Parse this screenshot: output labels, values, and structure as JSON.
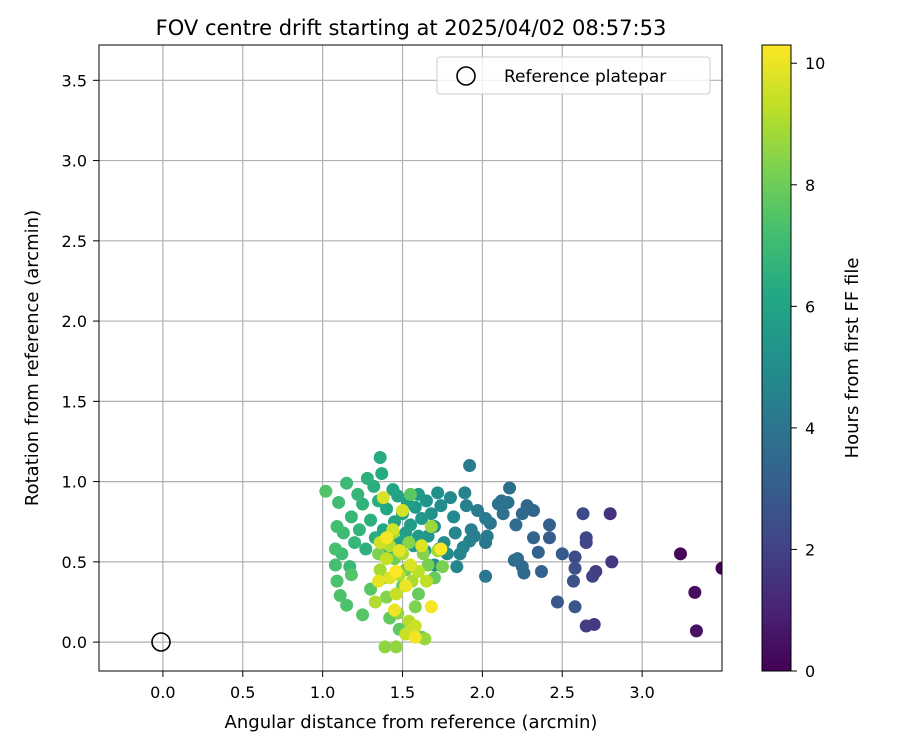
{
  "chart_data": {
    "type": "scatter",
    "title": "FOV centre drift starting at 2025/04/02 08:57:53",
    "xlabel": "Angular distance from reference (arcmin)",
    "ylabel": "Rotation from reference (arcmin)",
    "xlim": [
      -0.4,
      3.5
    ],
    "ylim": [
      -0.18,
      3.72
    ],
    "xticks": [
      "0.0",
      "0.5",
      "1.0",
      "1.5",
      "2.0",
      "2.5",
      "3.0"
    ],
    "yticks": [
      "0.0",
      "0.5",
      "1.0",
      "1.5",
      "2.0",
      "2.5",
      "3.0",
      "3.5"
    ],
    "grid": true,
    "legend": {
      "placement": "top-right",
      "entries": [
        "Reference platepar"
      ]
    },
    "colorbar": {
      "label": "Hours from first FF file",
      "range": [
        0,
        10.3
      ],
      "ticks": [
        "0",
        "2",
        "4",
        "6",
        "8",
        "10"
      ],
      "colormap": "viridis"
    },
    "reference_point": {
      "x": 0.0,
      "y": 0.0,
      "name": "Reference platepar"
    },
    "points": [
      {
        "x": 3.5,
        "y": 0.46,
        "h": 0.05
      },
      {
        "x": 3.24,
        "y": 0.55,
        "h": 0.2
      },
      {
        "x": 3.33,
        "y": 0.31,
        "h": 0.35
      },
      {
        "x": 3.34,
        "y": 0.07,
        "h": 0.5
      },
      {
        "x": 2.8,
        "y": 0.8,
        "h": 1.5
      },
      {
        "x": 2.81,
        "y": 0.5,
        "h": 1.6
      },
      {
        "x": 2.7,
        "y": 0.11,
        "h": 1.7
      },
      {
        "x": 2.65,
        "y": 0.1,
        "h": 1.8
      },
      {
        "x": 2.71,
        "y": 0.44,
        "h": 1.9
      },
      {
        "x": 2.69,
        "y": 0.41,
        "h": 2.0
      },
      {
        "x": 2.65,
        "y": 0.62,
        "h": 2.1
      },
      {
        "x": 2.65,
        "y": 0.65,
        "h": 2.2
      },
      {
        "x": 2.63,
        "y": 0.8,
        "h": 2.3
      },
      {
        "x": 2.58,
        "y": 0.53,
        "h": 2.4
      },
      {
        "x": 2.58,
        "y": 0.46,
        "h": 2.5
      },
      {
        "x": 2.57,
        "y": 0.38,
        "h": 2.6
      },
      {
        "x": 2.58,
        "y": 0.22,
        "h": 2.7
      },
      {
        "x": 2.47,
        "y": 0.25,
        "h": 2.8
      },
      {
        "x": 2.5,
        "y": 0.55,
        "h": 2.9
      },
      {
        "x": 2.42,
        "y": 0.65,
        "h": 3.0
      },
      {
        "x": 2.42,
        "y": 0.73,
        "h": 3.1
      },
      {
        "x": 2.37,
        "y": 0.44,
        "h": 3.2
      },
      {
        "x": 2.35,
        "y": 0.56,
        "h": 3.25
      },
      {
        "x": 2.32,
        "y": 0.65,
        "h": 3.3
      },
      {
        "x": 2.32,
        "y": 0.82,
        "h": 3.35
      },
      {
        "x": 2.28,
        "y": 0.85,
        "h": 3.4
      },
      {
        "x": 2.25,
        "y": 0.8,
        "h": 3.45
      },
      {
        "x": 2.25,
        "y": 0.47,
        "h": 3.5
      },
      {
        "x": 2.26,
        "y": 0.43,
        "h": 3.55
      },
      {
        "x": 2.22,
        "y": 0.52,
        "h": 3.6
      },
      {
        "x": 2.21,
        "y": 0.73,
        "h": 3.65
      },
      {
        "x": 2.2,
        "y": 0.51,
        "h": 3.7
      },
      {
        "x": 2.17,
        "y": 0.96,
        "h": 3.75
      },
      {
        "x": 2.16,
        "y": 0.87,
        "h": 3.8
      },
      {
        "x": 2.13,
        "y": 0.8,
        "h": 3.85
      },
      {
        "x": 2.12,
        "y": 0.88,
        "h": 3.9
      },
      {
        "x": 2.1,
        "y": 0.86,
        "h": 3.95
      },
      {
        "x": 2.05,
        "y": 0.74,
        "h": 4.0
      },
      {
        "x": 2.02,
        "y": 0.41,
        "h": 4.05
      },
      {
        "x": 2.02,
        "y": 0.62,
        "h": 4.1
      },
      {
        "x": 2.03,
        "y": 0.66,
        "h": 4.15
      },
      {
        "x": 2.02,
        "y": 0.77,
        "h": 4.2
      },
      {
        "x": 1.97,
        "y": 0.82,
        "h": 4.25
      },
      {
        "x": 1.92,
        "y": 1.1,
        "h": 4.3
      },
      {
        "x": 1.95,
        "y": 0.66,
        "h": 4.35
      },
      {
        "x": 1.93,
        "y": 0.7,
        "h": 4.4
      },
      {
        "x": 1.92,
        "y": 0.63,
        "h": 4.45
      },
      {
        "x": 1.9,
        "y": 0.85,
        "h": 4.5
      },
      {
        "x": 1.89,
        "y": 0.93,
        "h": 4.55
      },
      {
        "x": 1.88,
        "y": 0.59,
        "h": 4.6
      },
      {
        "x": 1.86,
        "y": 0.55,
        "h": 4.65
      },
      {
        "x": 1.84,
        "y": 0.47,
        "h": 4.7
      },
      {
        "x": 1.83,
        "y": 0.68,
        "h": 4.75
      },
      {
        "x": 1.82,
        "y": 0.78,
        "h": 4.8
      },
      {
        "x": 1.8,
        "y": 0.9,
        "h": 4.85
      },
      {
        "x": 1.78,
        "y": 0.55,
        "h": 4.9
      },
      {
        "x": 1.76,
        "y": 0.62,
        "h": 4.95
      },
      {
        "x": 1.74,
        "y": 0.85,
        "h": 5.0
      },
      {
        "x": 1.73,
        "y": 0.58,
        "h": 5.05
      },
      {
        "x": 1.72,
        "y": 0.93,
        "h": 5.1
      },
      {
        "x": 1.7,
        "y": 0.72,
        "h": 5.15
      },
      {
        "x": 1.7,
        "y": 0.48,
        "h": 5.2
      },
      {
        "x": 1.68,
        "y": 0.8,
        "h": 5.25
      },
      {
        "x": 1.66,
        "y": 0.66,
        "h": 5.3
      },
      {
        "x": 1.65,
        "y": 0.88,
        "h": 5.35
      },
      {
        "x": 1.64,
        "y": 0.57,
        "h": 5.4
      },
      {
        "x": 1.62,
        "y": 0.77,
        "h": 5.45
      },
      {
        "x": 1.6,
        "y": 0.92,
        "h": 5.5
      },
      {
        "x": 1.6,
        "y": 0.66,
        "h": 5.55
      },
      {
        "x": 1.58,
        "y": 0.84,
        "h": 5.6
      },
      {
        "x": 1.57,
        "y": 0.6,
        "h": 5.65
      },
      {
        "x": 1.55,
        "y": 0.73,
        "h": 5.7
      },
      {
        "x": 1.53,
        "y": 0.87,
        "h": 5.75
      },
      {
        "x": 1.52,
        "y": 0.68,
        "h": 5.8
      },
      {
        "x": 1.5,
        "y": 0.8,
        "h": 5.85
      },
      {
        "x": 1.48,
        "y": 0.62,
        "h": 5.9
      },
      {
        "x": 1.47,
        "y": 0.91,
        "h": 5.95
      },
      {
        "x": 1.45,
        "y": 0.75,
        "h": 6.0
      },
      {
        "x": 1.44,
        "y": 0.95,
        "h": 6.05
      },
      {
        "x": 1.42,
        "y": 0.58,
        "h": 6.1
      },
      {
        "x": 1.4,
        "y": 0.83,
        "h": 6.15
      },
      {
        "x": 1.38,
        "y": 0.7,
        "h": 6.2
      },
      {
        "x": 1.37,
        "y": 1.05,
        "h": 6.25
      },
      {
        "x": 1.36,
        "y": 1.15,
        "h": 6.3
      },
      {
        "x": 1.35,
        "y": 0.88,
        "h": 6.35
      },
      {
        "x": 1.33,
        "y": 0.65,
        "h": 6.4
      },
      {
        "x": 1.32,
        "y": 0.97,
        "h": 6.45
      },
      {
        "x": 1.3,
        "y": 0.76,
        "h": 6.5
      },
      {
        "x": 1.28,
        "y": 1.02,
        "h": 6.55
      },
      {
        "x": 1.27,
        "y": 0.58,
        "h": 6.6
      },
      {
        "x": 1.25,
        "y": 0.86,
        "h": 6.65
      },
      {
        "x": 1.23,
        "y": 0.7,
        "h": 6.7
      },
      {
        "x": 1.22,
        "y": 0.92,
        "h": 6.75
      },
      {
        "x": 1.2,
        "y": 0.62,
        "h": 6.8
      },
      {
        "x": 1.18,
        "y": 0.78,
        "h": 6.85
      },
      {
        "x": 1.17,
        "y": 0.47,
        "h": 6.9
      },
      {
        "x": 1.15,
        "y": 0.99,
        "h": 6.95
      },
      {
        "x": 1.13,
        "y": 0.68,
        "h": 7.0
      },
      {
        "x": 1.12,
        "y": 0.55,
        "h": 7.05
      },
      {
        "x": 1.1,
        "y": 0.87,
        "h": 7.1
      },
      {
        "x": 1.09,
        "y": 0.72,
        "h": 7.15
      },
      {
        "x": 1.08,
        "y": 0.48,
        "h": 7.2
      },
      {
        "x": 1.08,
        "y": 0.58,
        "h": 7.25
      },
      {
        "x": 1.09,
        "y": 0.38,
        "h": 7.3
      },
      {
        "x": 1.11,
        "y": 0.29,
        "h": 7.35
      },
      {
        "x": 1.15,
        "y": 0.23,
        "h": 7.4
      },
      {
        "x": 1.02,
        "y": 0.94,
        "h": 7.45
      },
      {
        "x": 1.18,
        "y": 0.42,
        "h": 7.5
      },
      {
        "x": 1.25,
        "y": 0.17,
        "h": 7.55
      },
      {
        "x": 1.3,
        "y": 0.33,
        "h": 7.6
      },
      {
        "x": 1.55,
        "y": 0.92,
        "h": 7.65
      },
      {
        "x": 1.62,
        "y": 0.03,
        "h": 7.7
      },
      {
        "x": 1.48,
        "y": 0.08,
        "h": 7.75
      },
      {
        "x": 1.42,
        "y": 0.15,
        "h": 7.8
      },
      {
        "x": 1.7,
        "y": 0.4,
        "h": 7.85
      },
      {
        "x": 1.6,
        "y": 0.3,
        "h": 7.9
      },
      {
        "x": 1.5,
        "y": 0.35,
        "h": 7.95
      },
      {
        "x": 1.38,
        "y": 0.4,
        "h": 8.0
      },
      {
        "x": 1.45,
        "y": 0.52,
        "h": 8.05
      },
      {
        "x": 1.52,
        "y": 0.45,
        "h": 8.1
      },
      {
        "x": 1.66,
        "y": 0.48,
        "h": 8.15
      },
      {
        "x": 1.75,
        "y": 0.47,
        "h": 8.2
      },
      {
        "x": 1.35,
        "y": 0.55,
        "h": 8.25
      },
      {
        "x": 1.58,
        "y": 0.22,
        "h": 8.3
      },
      {
        "x": 1.4,
        "y": 0.28,
        "h": 8.35
      },
      {
        "x": 1.63,
        "y": 0.55,
        "h": 8.4
      },
      {
        "x": 1.54,
        "y": 0.62,
        "h": 8.45
      },
      {
        "x": 1.47,
        "y": 0.18,
        "h": 8.5
      },
      {
        "x": 1.39,
        "y": -0.03,
        "h": 8.55
      },
      {
        "x": 1.46,
        "y": -0.03,
        "h": 8.6
      },
      {
        "x": 1.57,
        "y": 0.1,
        "h": 8.65
      },
      {
        "x": 1.64,
        "y": 0.02,
        "h": 8.7
      },
      {
        "x": 1.68,
        "y": 0.72,
        "h": 8.75
      },
      {
        "x": 1.72,
        "y": 0.57,
        "h": 8.8
      },
      {
        "x": 1.44,
        "y": 0.68,
        "h": 8.85
      },
      {
        "x": 1.36,
        "y": 0.45,
        "h": 8.9
      },
      {
        "x": 1.5,
        "y": 0.55,
        "h": 8.95
      },
      {
        "x": 1.56,
        "y": 0.38,
        "h": 9.0
      },
      {
        "x": 1.33,
        "y": 0.25,
        "h": 9.05
      },
      {
        "x": 1.42,
        "y": 0.6,
        "h": 9.1
      },
      {
        "x": 1.48,
        "y": 0.42,
        "h": 9.15
      },
      {
        "x": 1.54,
        "y": 0.13,
        "h": 9.2
      },
      {
        "x": 1.6,
        "y": 0.44,
        "h": 9.25
      },
      {
        "x": 1.65,
        "y": 0.38,
        "h": 9.3
      },
      {
        "x": 1.4,
        "y": 0.52,
        "h": 9.35
      },
      {
        "x": 1.46,
        "y": 0.3,
        "h": 9.4
      },
      {
        "x": 1.52,
        "y": 0.05,
        "h": 9.45
      },
      {
        "x": 1.58,
        "y": 0.1,
        "h": 9.5
      },
      {
        "x": 1.36,
        "y": 0.62,
        "h": 9.55
      },
      {
        "x": 1.44,
        "y": 0.7,
        "h": 9.6
      },
      {
        "x": 1.5,
        "y": 0.82,
        "h": 9.65
      },
      {
        "x": 1.38,
        "y": 0.9,
        "h": 9.7
      },
      {
        "x": 1.55,
        "y": 0.48,
        "h": 9.75
      },
      {
        "x": 1.62,
        "y": 0.6,
        "h": 9.8
      },
      {
        "x": 1.42,
        "y": 0.4,
        "h": 9.85
      },
      {
        "x": 1.48,
        "y": 0.57,
        "h": 9.9
      },
      {
        "x": 1.35,
        "y": 0.38,
        "h": 9.95
      },
      {
        "x": 1.52,
        "y": 0.35,
        "h": 10.0
      },
      {
        "x": 1.45,
        "y": 0.2,
        "h": 10.05
      },
      {
        "x": 1.58,
        "y": 0.03,
        "h": 10.1
      },
      {
        "x": 1.68,
        "y": 0.22,
        "h": 10.15
      },
      {
        "x": 1.4,
        "y": 0.65,
        "h": 10.2
      },
      {
        "x": 1.74,
        "y": 0.58,
        "h": 10.25
      },
      {
        "x": 1.46,
        "y": 0.44,
        "h": 10.3
      }
    ]
  }
}
